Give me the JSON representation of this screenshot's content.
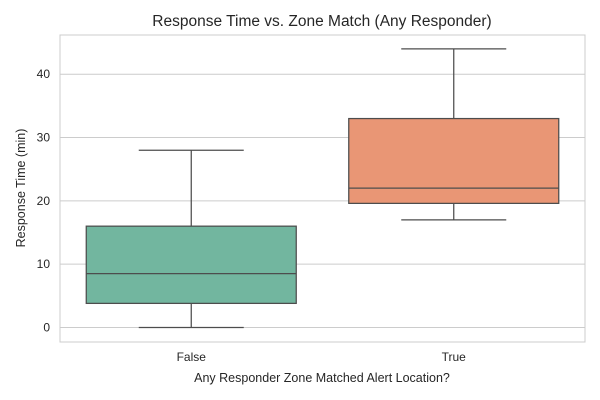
{
  "chart_data": {
    "type": "box",
    "title": "Response Time vs. Zone Match (Any Responder)",
    "xlabel": "Any Responder Zone Matched Alert Location?",
    "ylabel": "Response Time (min)",
    "categories": [
      "False",
      "True"
    ],
    "ylim": [
      -2.3,
      46.2
    ],
    "yticks": [
      0,
      10,
      20,
      30,
      40
    ],
    "grid": true,
    "boxes": [
      {
        "category": "False",
        "whisker_low": 0,
        "q1": 3.8,
        "median": 8.5,
        "q3": 16,
        "whisker_high": 28,
        "color": "#72b69f"
      },
      {
        "category": "True",
        "whisker_low": 17,
        "q1": 19.6,
        "median": 22,
        "q3": 33,
        "whisker_high": 44,
        "color": "#e99675"
      }
    ]
  }
}
